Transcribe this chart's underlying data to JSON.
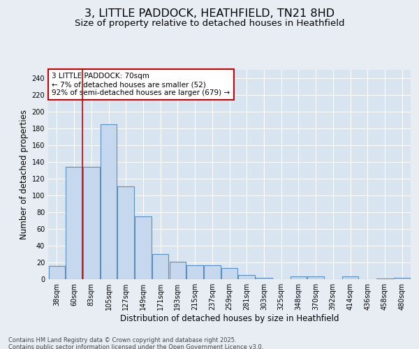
{
  "title_line1": "3, LITTLE PADDOCK, HEATHFIELD, TN21 8HD",
  "title_line2": "Size of property relative to detached houses in Heathfield",
  "xlabel": "Distribution of detached houses by size in Heathfield",
  "ylabel": "Number of detached properties",
  "categories": [
    "38sqm",
    "60sqm",
    "83sqm",
    "105sqm",
    "127sqm",
    "149sqm",
    "171sqm",
    "193sqm",
    "215sqm",
    "237sqm",
    "259sqm",
    "281sqm",
    "303sqm",
    "325sqm",
    "348sqm",
    "370sqm",
    "392sqm",
    "414sqm",
    "436sqm",
    "458sqm",
    "480sqm"
  ],
  "values": [
    16,
    134,
    134,
    185,
    111,
    75,
    30,
    21,
    17,
    17,
    13,
    5,
    2,
    0,
    3,
    3,
    0,
    3,
    0,
    1,
    2
  ],
  "bar_color": "#c5d8ed",
  "bar_edge_color": "#5b8dbf",
  "bar_linewidth": 0.8,
  "vline_x": 1.5,
  "vline_color": "#cc0000",
  "annotation_text": "3 LITTLE PADDOCK: 70sqm\n← 7% of detached houses are smaller (52)\n92% of semi-detached houses are larger (679) →",
  "annotation_box_color": "#ffffff",
  "annotation_box_edge": "#cc0000",
  "ylim": [
    0,
    250
  ],
  "yticks": [
    0,
    20,
    40,
    60,
    80,
    100,
    120,
    140,
    160,
    180,
    200,
    220,
    240
  ],
  "background_color": "#e8edf4",
  "plot_bg_color": "#d8e4f0",
  "grid_color": "#ffffff",
  "footer_text": "Contains HM Land Registry data © Crown copyright and database right 2025.\nContains public sector information licensed under the Open Government Licence v3.0.",
  "title_fontsize": 11.5,
  "subtitle_fontsize": 9.5,
  "axis_label_fontsize": 8.5,
  "tick_fontsize": 7,
  "annotation_fontsize": 7.5,
  "footer_fontsize": 6
}
